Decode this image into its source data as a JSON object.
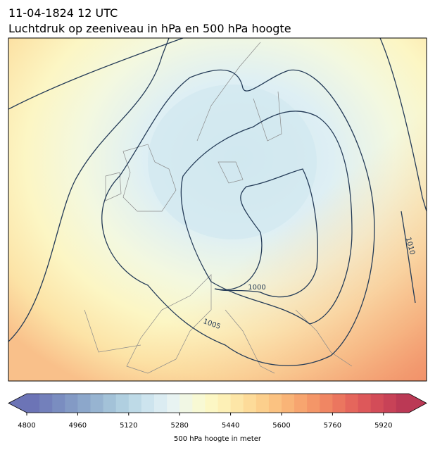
{
  "header": {
    "line1": "11-04-1824 12 UTC",
    "line2": "Luchtdruk op zeeniveau in hPa en 500 hPa hoogte"
  },
  "map": {
    "isobar_labels": [
      "1000",
      "1005",
      "1010"
    ]
  },
  "colorbar": {
    "label": "500 hPa hoogte in meter",
    "lim": [
      4800,
      6000
    ],
    "ticks": [
      4800,
      4960,
      5120,
      5280,
      5440,
      5600,
      5760,
      5920
    ],
    "colors": [
      "#6c74b6",
      "#7380bb",
      "#7a8dc0",
      "#839ac5",
      "#8ca7cb",
      "#97b4d1",
      "#a3c2d8",
      "#b0cfe0",
      "#bedae7",
      "#cde4ee",
      "#dbecf2",
      "#e8f3f2",
      "#f1f7e4",
      "#f8f9d4",
      "#fcf7c4",
      "#fdf0b6",
      "#fde6a7",
      "#fddb99",
      "#fccf8c",
      "#fbc281",
      "#f9b477",
      "#f7a56f",
      "#f49668",
      "#f08663",
      "#eb765f",
      "#e5665c",
      "#dd585a",
      "#d34c58",
      "#c84257",
      "#bb3955"
    ]
  }
}
